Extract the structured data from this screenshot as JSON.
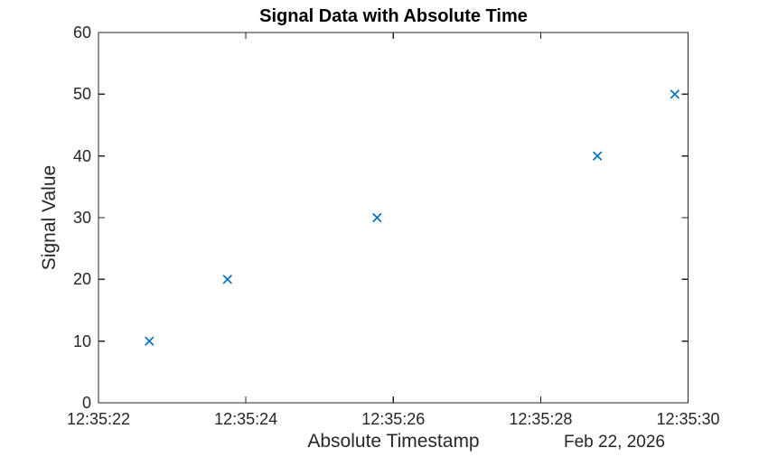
{
  "figure": {
    "background": "#ffffff"
  },
  "chart_data": {
    "type": "scatter",
    "title": "Signal Data with Absolute Time",
    "xlabel": "Absolute Timestamp",
    "x_secondary_label": "Feb 22, 2026",
    "ylabel": "Signal Value",
    "marker": "x",
    "marker_color": "#0072BD",
    "axis_color": "#262626",
    "grid": false,
    "legend": null,
    "x_tick_labels": [
      "12:35:22",
      "12:35:24",
      "12:35:26",
      "12:35:28",
      "12:35:30"
    ],
    "x_tick_seconds": [
      22,
      24,
      26,
      28,
      30
    ],
    "xlim_seconds": [
      22,
      30
    ],
    "y_ticks": [
      0,
      10,
      20,
      30,
      40,
      50,
      60
    ],
    "ylim": [
      0,
      60
    ],
    "points": [
      {
        "time": "12:35:22.7",
        "t_seconds": 22.69,
        "value": 10
      },
      {
        "time": "12:35:23.8",
        "t_seconds": 23.75,
        "value": 20
      },
      {
        "time": "12:35:25.8",
        "t_seconds": 25.78,
        "value": 30
      },
      {
        "time": "12:35:28.8",
        "t_seconds": 28.77,
        "value": 40
      },
      {
        "time": "12:35:29.8",
        "t_seconds": 29.82,
        "value": 50
      }
    ]
  }
}
